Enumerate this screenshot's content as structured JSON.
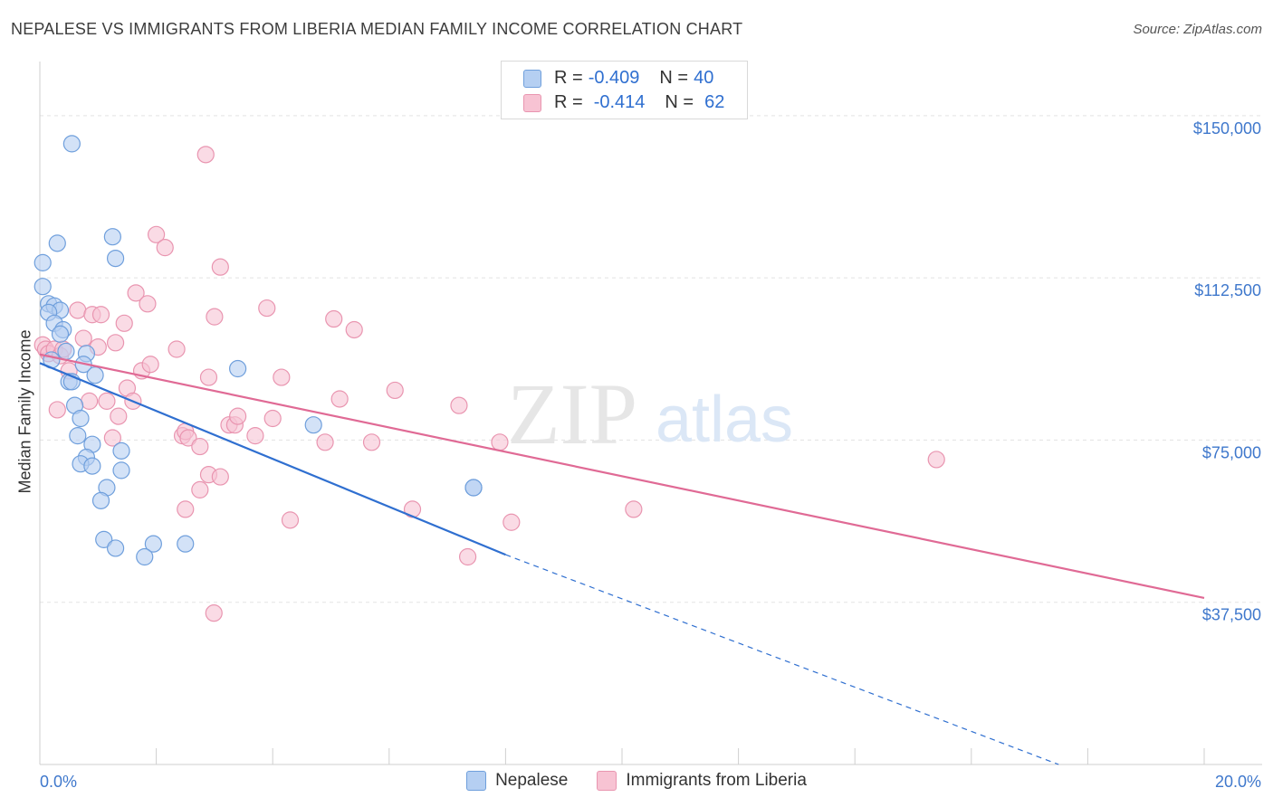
{
  "header": {
    "title": "NEPALESE VS IMMIGRANTS FROM LIBERIA MEDIAN FAMILY INCOME CORRELATION CHART",
    "source": "Source: ZipAtlas.com"
  },
  "legend": {
    "r_label": "R =",
    "n_label": "N =",
    "series": [
      {
        "name": "Nepalese",
        "r": "-0.409",
        "n": "40"
      },
      {
        "name": "Immigrants from Liberia",
        "r": "-0.414",
        "n": "62"
      }
    ]
  },
  "watermark": {
    "zip": "ZIP",
    "atlas": "atlas"
  },
  "colors": {
    "nepalese_fill": "#b5cff2",
    "nepalese_stroke": "#6f9fdc",
    "nepalese_line": "#2f6fd0",
    "liberia_fill": "#f7c3d3",
    "liberia_stroke": "#e995b0",
    "liberia_line": "#e06a95",
    "axis_label": "#3f78cc",
    "grid": "#e3e3e3"
  },
  "chart_data": {
    "type": "scatter",
    "title": "NEPALESE VS IMMIGRANTS FROM LIBERIA MEDIAN FAMILY INCOME CORRELATION CHART",
    "xlabel": "",
    "ylabel": "Median Family Income",
    "xlim": [
      0,
      20
    ],
    "ylim": [
      0,
      160000
    ],
    "x_tick_labels": [
      "0.0%",
      "20.0%"
    ],
    "y_ticks": [
      37500,
      75000,
      112500,
      150000
    ],
    "y_tick_labels": [
      "$37,500",
      "$75,000",
      "$112,500",
      "$150,000"
    ],
    "grid": true,
    "series": [
      {
        "name": "Nepalese",
        "points": [
          [
            0.55,
            143500
          ],
          [
            0.05,
            116000
          ],
          [
            0.3,
            120500
          ],
          [
            0.05,
            110500
          ],
          [
            0.15,
            106500
          ],
          [
            0.25,
            106000
          ],
          [
            0.35,
            105000
          ],
          [
            0.15,
            104500
          ],
          [
            0.25,
            102000
          ],
          [
            0.4,
            100500
          ],
          [
            0.35,
            99500
          ],
          [
            0.45,
            95500
          ],
          [
            0.2,
            93500
          ],
          [
            0.8,
            95000
          ],
          [
            0.75,
            92500
          ],
          [
            0.95,
            90000
          ],
          [
            0.5,
            88500
          ],
          [
            0.55,
            88500
          ],
          [
            1.25,
            122000
          ],
          [
            1.3,
            117000
          ],
          [
            3.4,
            91500
          ],
          [
            0.6,
            83000
          ],
          [
            0.7,
            80000
          ],
          [
            0.65,
            76000
          ],
          [
            0.9,
            74000
          ],
          [
            0.8,
            71000
          ],
          [
            0.7,
            69500
          ],
          [
            0.9,
            69000
          ],
          [
            1.4,
            72500
          ],
          [
            1.4,
            68000
          ],
          [
            1.15,
            64000
          ],
          [
            1.05,
            61000
          ],
          [
            1.1,
            52000
          ],
          [
            1.3,
            50000
          ],
          [
            1.95,
            51000
          ],
          [
            1.8,
            48000
          ],
          [
            2.5,
            51000
          ],
          [
            4.7,
            78500
          ],
          [
            7.45,
            64000
          ],
          [
            7.45,
            64000
          ]
        ],
        "trend": {
          "x": [
            0.0,
            8.0
          ],
          "y": [
            92800,
            48500
          ],
          "dashed_to": [
            17.5,
            0
          ]
        }
      },
      {
        "name": "Immigrants from Liberia",
        "points": [
          [
            0.05,
            97000
          ],
          [
            0.1,
            96000
          ],
          [
            0.15,
            95000
          ],
          [
            0.25,
            96000
          ],
          [
            0.35,
            94500
          ],
          [
            0.4,
            96000
          ],
          [
            0.3,
            82000
          ],
          [
            0.5,
            91000
          ],
          [
            0.65,
            105000
          ],
          [
            0.75,
            98500
          ],
          [
            0.85,
            84000
          ],
          [
            0.9,
            104000
          ],
          [
            1.0,
            96500
          ],
          [
            1.05,
            104000
          ],
          [
            1.15,
            84000
          ],
          [
            1.25,
            75500
          ],
          [
            1.3,
            97500
          ],
          [
            1.35,
            80500
          ],
          [
            1.45,
            102000
          ],
          [
            1.5,
            87000
          ],
          [
            1.6,
            84000
          ],
          [
            1.65,
            109000
          ],
          [
            1.75,
            91000
          ],
          [
            1.85,
            106500
          ],
          [
            1.9,
            92500
          ],
          [
            2.0,
            122500
          ],
          [
            2.15,
            119500
          ],
          [
            2.35,
            96000
          ],
          [
            2.45,
            76000
          ],
          [
            2.5,
            77000
          ],
          [
            2.55,
            75500
          ],
          [
            2.75,
            73500
          ],
          [
            2.75,
            63500
          ],
          [
            2.5,
            59000
          ],
          [
            2.9,
            67000
          ],
          [
            2.9,
            89500
          ],
          [
            2.85,
            141000
          ],
          [
            3.0,
            103500
          ],
          [
            3.1,
            66500
          ],
          [
            3.1,
            115000
          ],
          [
            3.25,
            78500
          ],
          [
            3.35,
            78500
          ],
          [
            3.4,
            80500
          ],
          [
            3.7,
            76000
          ],
          [
            3.9,
            105500
          ],
          [
            4.0,
            80000
          ],
          [
            4.15,
            89500
          ],
          [
            4.3,
            56500
          ],
          [
            4.9,
            74500
          ],
          [
            5.05,
            103000
          ],
          [
            5.15,
            84500
          ],
          [
            5.4,
            100500
          ],
          [
            5.7,
            74500
          ],
          [
            6.1,
            86500
          ],
          [
            6.4,
            59000
          ],
          [
            7.2,
            83000
          ],
          [
            7.35,
            48000
          ],
          [
            7.9,
            74500
          ],
          [
            8.1,
            56000
          ],
          [
            10.2,
            59000
          ],
          [
            15.4,
            70500
          ],
          [
            2.99,
            35000
          ]
        ],
        "trend": {
          "x": [
            0.0,
            20.0
          ],
          "y": [
            94800,
            38500
          ]
        }
      }
    ]
  }
}
